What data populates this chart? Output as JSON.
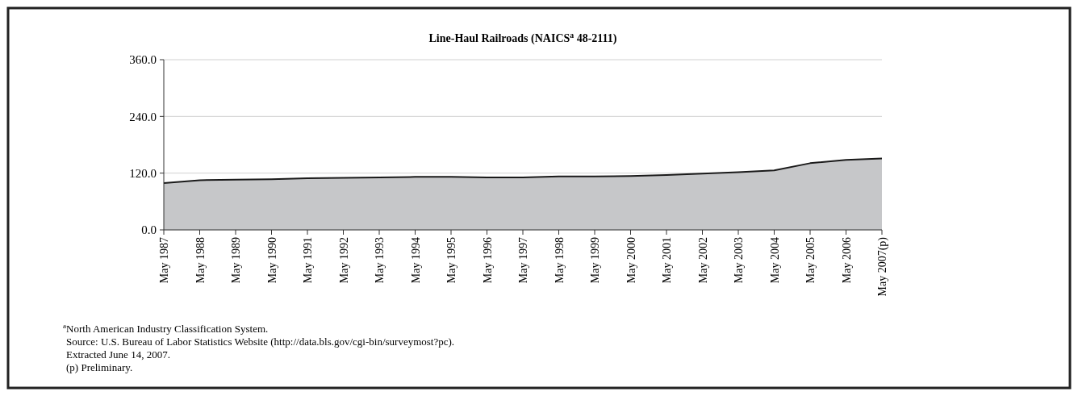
{
  "chart_data": {
    "type": "area",
    "title": "Line-Haul Railroads (NAICS$^{a}$ 48-2111)",
    "categories": [
      "May 1987",
      "May 1988",
      "May 1989",
      "May 1990",
      "May 1991",
      "May 1992",
      "May 1993",
      "May 1994",
      "May 1995",
      "May 1996",
      "May 1997",
      "May 1998",
      "May 1999",
      "May 2000",
      "May 2001",
      "May 2002",
      "May 2003",
      "May 2004",
      "May 2005",
      "May 2006",
      "May 2007(p)"
    ],
    "series": [
      {
        "color": "#c6c7c9",
        "values": [
          99,
          105,
          106,
          107,
          109,
          110,
          111,
          112,
          112,
          111,
          111,
          113,
          113,
          114,
          116,
          119,
          122,
          126,
          141,
          148,
          151
        ]
      }
    ],
    "ylim": [
      0,
      360
    ],
    "yticks": [
      {
        "value": 0,
        "label": "0.0"
      },
      {
        "value": 120,
        "label": "120.0"
      },
      {
        "value": 240,
        "label": "240.0"
      },
      {
        "value": 360,
        "label": "360.0"
      }
    ],
    "grid": "y",
    "annotations": [
      "$^{a}$North American Industry Classification System.",
      "Source: U.S. Bureau of Labor Statistics Website (http://data.bls.gov/cgi-bin/surveymost?pc).",
      "Extracted June 14, 2007.",
      "(p) Preliminary."
    ]
  }
}
